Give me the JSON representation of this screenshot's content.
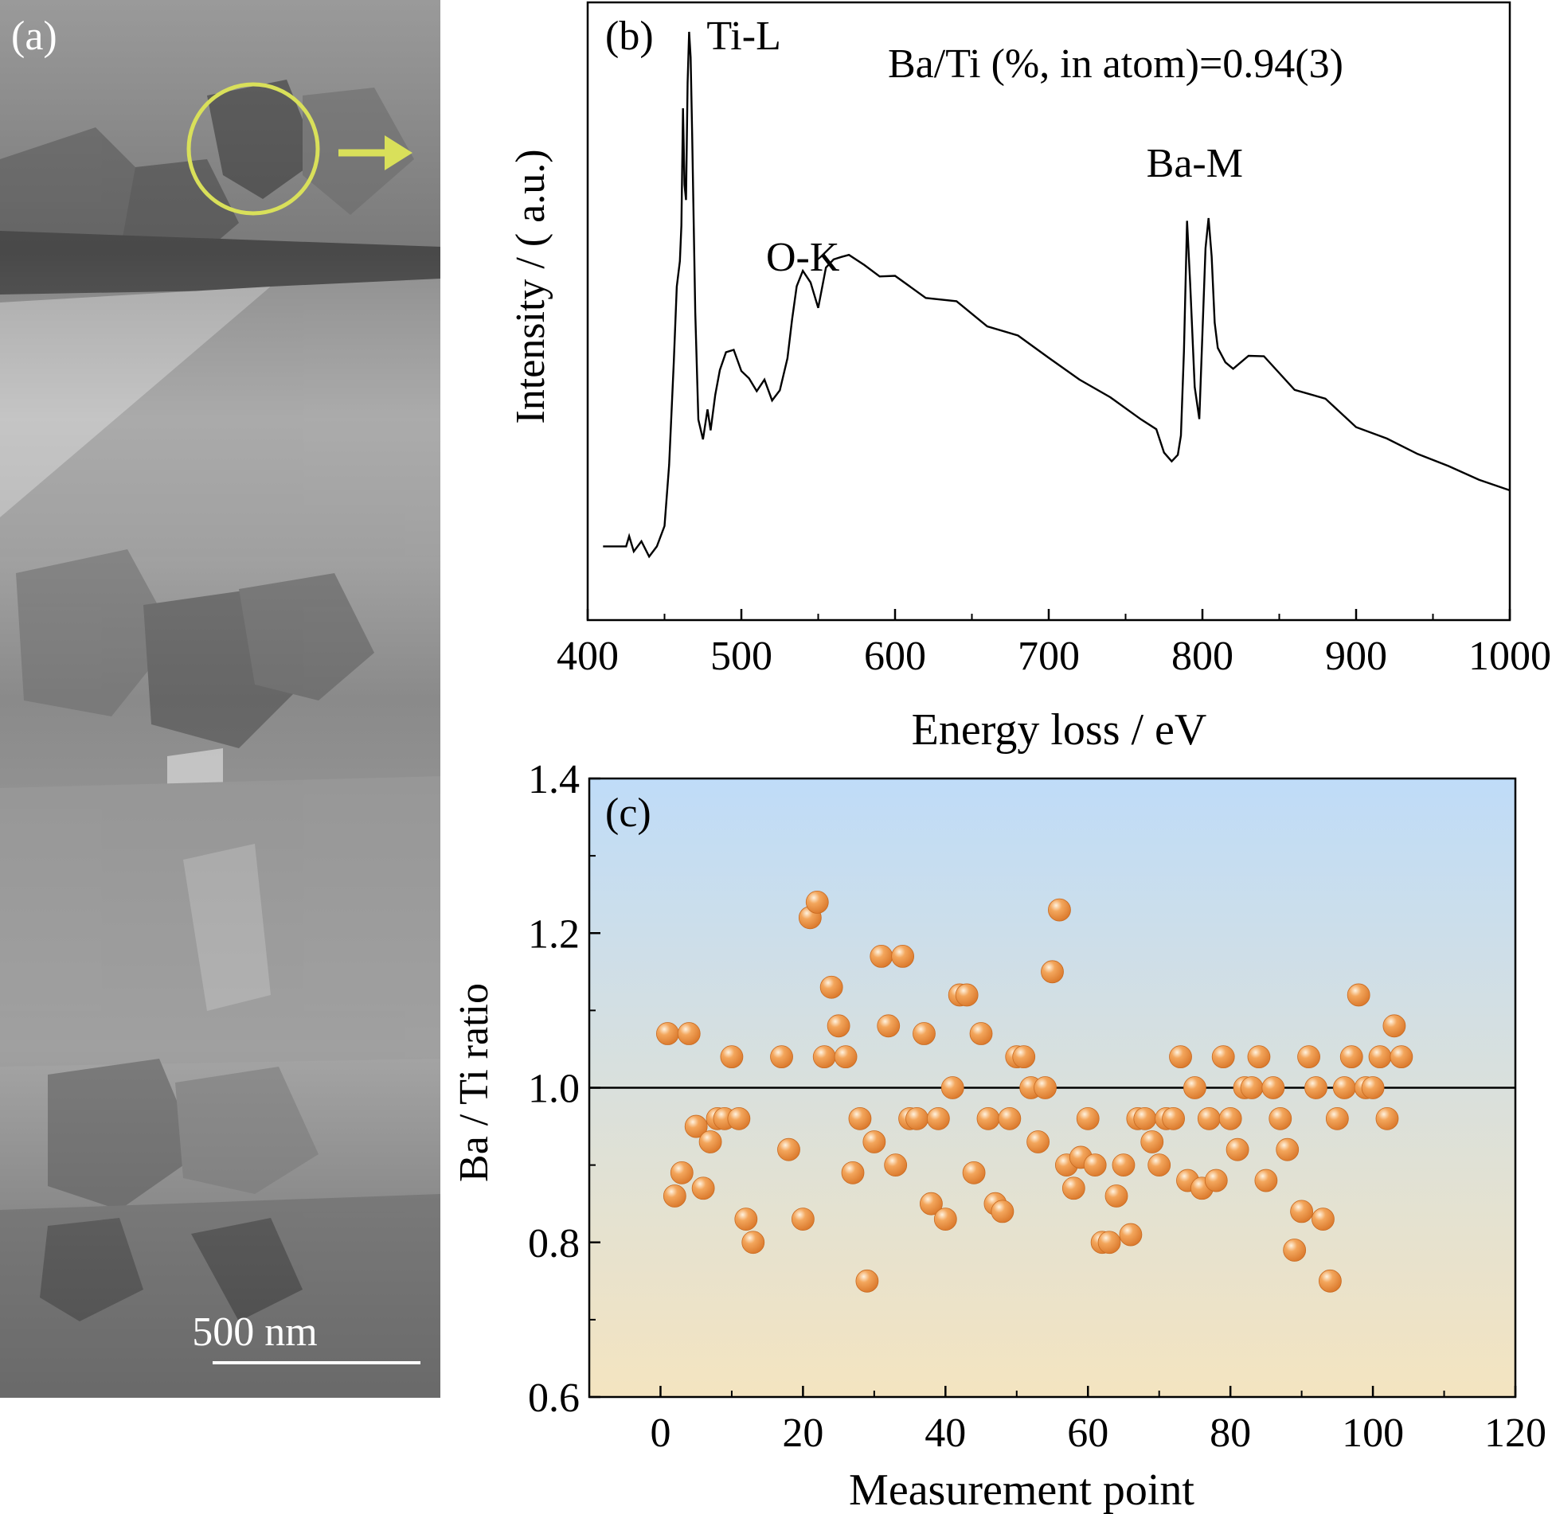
{
  "panel_a": {
    "label": "(a)",
    "scale_bar_label": "500 nm",
    "circle_color": "#d9e05a",
    "background_tone": "#8c8c8c"
  },
  "chart_data": [
    {
      "type": "line",
      "panel_label": "(b)",
      "xlabel": "Energy loss / eV",
      "ylabel": "Intensity / ( a.u.)",
      "xlim": [
        400,
        1000
      ],
      "xticks": [
        400,
        500,
        600,
        700,
        800,
        900,
        1000
      ],
      "y_tick_labels": false,
      "annotation": "Ba/Ti (%, in atom)=0.94(3)",
      "line_color": "#000000",
      "peak_labels": [
        {
          "text": "Ti-L",
          "x": 466
        },
        {
          "text": "O-K",
          "x": 540
        },
        {
          "text": "Ba-M",
          "x": 795
        }
      ],
      "series": [
        {
          "x": [
            410,
            425,
            427,
            430,
            435,
            440,
            445,
            450,
            453,
            456,
            458,
            460,
            461,
            462,
            463,
            464,
            465,
            466,
            467,
            468,
            470,
            472,
            475,
            478,
            480,
            483,
            486,
            490,
            495,
            500,
            505,
            510,
            515,
            520,
            525,
            530,
            533,
            536,
            540,
            545,
            550,
            555,
            560,
            565,
            570,
            580,
            590,
            600,
            620,
            640,
            660,
            680,
            700,
            720,
            740,
            760,
            770,
            775,
            780,
            784,
            786,
            788,
            790,
            792,
            795,
            798,
            800,
            802,
            804,
            806,
            808,
            810,
            815,
            820,
            830,
            840,
            860,
            880,
            900,
            920,
            940,
            960,
            980,
            1000
          ],
          "y": [
            0.04,
            0.04,
            0.06,
            0.03,
            0.05,
            0.02,
            0.04,
            0.08,
            0.2,
            0.4,
            0.55,
            0.6,
            0.67,
            0.9,
            0.75,
            0.72,
            0.95,
            1.05,
            1.0,
            0.85,
            0.5,
            0.3,
            0.25,
            0.3,
            0.27,
            0.35,
            0.38,
            0.42,
            0.43,
            0.38,
            0.37,
            0.35,
            0.36,
            0.33,
            0.35,
            0.4,
            0.48,
            0.55,
            0.58,
            0.55,
            0.52,
            0.58,
            0.6,
            0.62,
            0.6,
            0.6,
            0.58,
            0.56,
            0.54,
            0.51,
            0.48,
            0.45,
            0.41,
            0.37,
            0.33,
            0.29,
            0.26,
            0.23,
            0.21,
            0.22,
            0.27,
            0.42,
            0.69,
            0.55,
            0.35,
            0.29,
            0.45,
            0.62,
            0.68,
            0.6,
            0.48,
            0.42,
            0.4,
            0.4,
            0.42,
            0.4,
            0.36,
            0.32,
            0.28,
            0.25,
            0.22,
            0.2,
            0.17,
            0.15
          ]
        }
      ]
    },
    {
      "type": "scatter",
      "panel_label": "(c)",
      "xlabel": "Measurement point",
      "ylabel": "Ba / Ti ratio",
      "xlim": [
        -10,
        120
      ],
      "ylim": [
        0.6,
        1.4
      ],
      "xticks": [
        0,
        20,
        40,
        60,
        80,
        100,
        120
      ],
      "yticks": [
        0.6,
        0.8,
        1.0,
        1.2,
        1.4
      ],
      "ytick_labels": [
        "0.6",
        "0.8",
        "1.0",
        "1.2",
        "1.4"
      ],
      "reference_line": 1.0,
      "marker_color": "#e8964a",
      "background_gradient": [
        "#bfdcf8",
        "#f4e4c0"
      ],
      "series": [
        {
          "x": [
            1,
            2,
            3,
            4,
            5,
            6,
            7,
            8,
            9,
            10,
            11,
            12,
            13,
            17,
            18,
            20,
            21,
            22,
            23,
            24,
            25,
            26,
            27,
            28,
            29,
            30,
            31,
            32,
            33,
            34,
            35,
            36,
            37,
            38,
            39,
            40,
            41,
            42,
            43,
            44,
            45,
            46,
            47,
            48,
            49,
            50,
            51,
            52,
            53,
            54,
            55,
            56,
            57,
            58,
            59,
            60,
            61,
            62,
            63,
            64,
            65,
            66,
            67,
            68,
            69,
            70,
            71,
            72,
            73,
            74,
            75,
            76,
            77,
            78,
            79,
            80,
            81,
            82,
            83,
            84,
            85,
            86,
            87,
            88,
            89,
            90,
            91,
            92,
            93,
            94,
            95,
            96,
            97,
            98,
            99,
            100,
            101,
            102,
            103,
            104
          ],
          "y": [
            1.07,
            0.86,
            0.89,
            1.07,
            0.95,
            0.87,
            0.93,
            0.96,
            0.96,
            1.04,
            0.96,
            0.83,
            0.8,
            1.04,
            0.92,
            0.83,
            1.22,
            1.24,
            1.04,
            1.13,
            1.08,
            1.04,
            0.89,
            0.96,
            0.75,
            0.93,
            1.17,
            1.08,
            0.9,
            1.17,
            0.96,
            0.96,
            1.07,
            0.85,
            0.96,
            0.83,
            1.0,
            1.12,
            1.12,
            0.89,
            1.07,
            0.96,
            0.85,
            0.84,
            0.96,
            1.04,
            1.04,
            1.0,
            0.93,
            1.0,
            1.15,
            1.23,
            0.9,
            0.87,
            0.91,
            0.96,
            0.9,
            0.8,
            0.8,
            0.86,
            0.9,
            0.81,
            0.96,
            0.96,
            0.93,
            0.9,
            0.96,
            0.96,
            1.04,
            0.88,
            1.0,
            0.87,
            0.96,
            0.88,
            1.04,
            0.96,
            0.92,
            1.0,
            1.0,
            1.04,
            0.88,
            1.0,
            0.96,
            0.92,
            0.79,
            0.84,
            1.04,
            1.0,
            0.83,
            0.75,
            0.96,
            1.0,
            1.04,
            1.12,
            1.0,
            1.0,
            1.04,
            0.96,
            1.08,
            1.04
          ]
        }
      ]
    }
  ]
}
